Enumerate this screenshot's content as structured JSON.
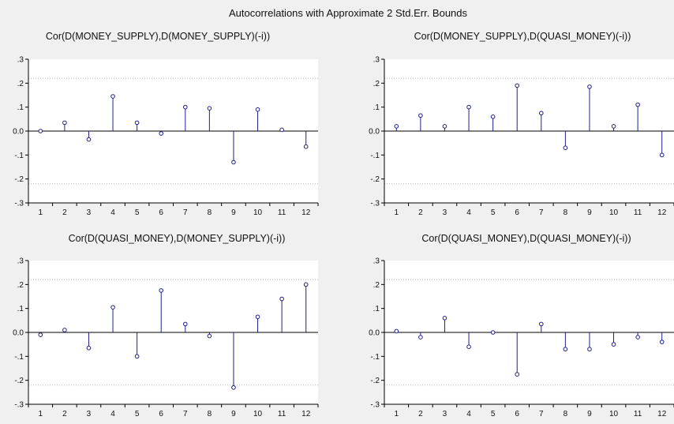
{
  "figure": {
    "title": "Autocorrelations with Approximate 2 Std.Err. Bounds",
    "colors": {
      "background": "#f0f0f0",
      "plot_area": "#ffffff",
      "stem": "#1f1f8c",
      "bound": "#b8b8b8",
      "zero_line": "#000000",
      "text": "#111111"
    }
  },
  "chart_data": [
    {
      "type": "stem",
      "title": "Cor(D(MONEY_SUPPLY),D(MONEY_SUPPLY)(-i))",
      "x": [
        1,
        2,
        3,
        4,
        5,
        6,
        7,
        8,
        9,
        10,
        11,
        12
      ],
      "values": [
        0.0,
        0.035,
        -0.035,
        0.145,
        0.035,
        -0.01,
        0.1,
        0.095,
        -0.13,
        0.09,
        0.005,
        -0.065
      ],
      "ylim": [
        -0.3,
        0.3
      ],
      "yticks": [
        ".3",
        ".2",
        ".1",
        "0.0",
        "-.1",
        "-.2",
        "-.3"
      ],
      "bounds": [
        0.22,
        -0.22
      ]
    },
    {
      "type": "stem",
      "title": "Cor(D(MONEY_SUPPLY),D(QUASI_MONEY)(-i))",
      "x": [
        1,
        2,
        3,
        4,
        5,
        6,
        7,
        8,
        9,
        10,
        11,
        12
      ],
      "values": [
        0.02,
        0.065,
        0.02,
        0.1,
        0.06,
        0.19,
        0.075,
        -0.07,
        0.185,
        0.02,
        0.11,
        -0.1
      ],
      "ylim": [
        -0.3,
        0.3
      ],
      "yticks": [
        ".3",
        ".2",
        ".1",
        "0.0",
        "-.1",
        "-.2",
        "-.3"
      ],
      "bounds": [
        0.22,
        -0.22
      ]
    },
    {
      "type": "stem",
      "title": "Cor(D(QUASI_MONEY),D(MONEY_SUPPLY)(-i))",
      "x": [
        1,
        2,
        3,
        4,
        5,
        6,
        7,
        8,
        9,
        10,
        11,
        12
      ],
      "values": [
        -0.01,
        0.01,
        -0.065,
        0.105,
        -0.1,
        0.175,
        0.035,
        -0.015,
        -0.23,
        0.065,
        0.14,
        0.2
      ],
      "ylim": [
        -0.3,
        0.3
      ],
      "yticks": [
        ".3",
        ".2",
        ".1",
        "0.0",
        "-.1",
        "-.2",
        "-.3"
      ],
      "bounds": [
        0.22,
        -0.22
      ]
    },
    {
      "type": "stem",
      "title": "Cor(D(QUASI_MONEY),D(QUASI_MONEY)(-i))",
      "x": [
        1,
        2,
        3,
        4,
        5,
        6,
        7,
        8,
        9,
        10,
        11,
        12
      ],
      "values": [
        0.005,
        -0.02,
        0.06,
        -0.06,
        0.0,
        -0.175,
        0.035,
        -0.07,
        -0.07,
        -0.05,
        -0.02,
        -0.04
      ],
      "ylim": [
        -0.3,
        0.3
      ],
      "yticks": [
        ".3",
        ".2",
        ".1",
        "0.0",
        "-.1",
        "-.2",
        "-.3"
      ],
      "bounds": [
        0.22,
        -0.22
      ]
    }
  ]
}
